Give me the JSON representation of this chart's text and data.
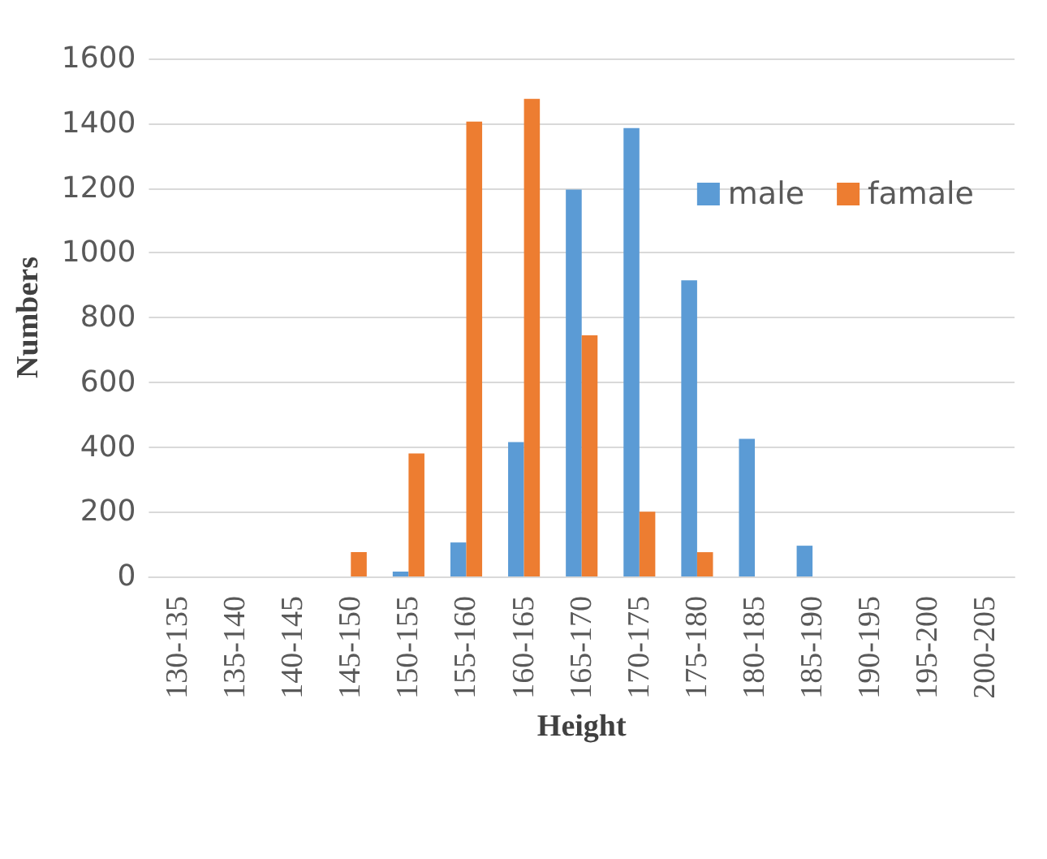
{
  "chart_data": {
    "type": "bar",
    "xlabel": "Height",
    "ylabel": "Numbers",
    "categories": [
      "130-135",
      "135-140",
      "140-145",
      "145-150",
      "150-155",
      "155-160",
      "160-165",
      "165-170",
      "170-175",
      "175-180",
      "180-185",
      "185-190",
      "190-195",
      "195-200",
      "200-205"
    ],
    "series": [
      {
        "name": "male",
        "color": "#5b9bd5",
        "values": [
          0,
          0,
          0,
          0,
          15,
          105,
          415,
          1195,
          1385,
          915,
          425,
          95,
          0,
          0,
          0
        ]
      },
      {
        "name": "famale",
        "color": "#ed7d31",
        "values": [
          0,
          0,
          0,
          75,
          380,
          1405,
          1475,
          745,
          200,
          75,
          0,
          0,
          0,
          0,
          0
        ]
      }
    ],
    "ylim": [
      0,
      1600
    ],
    "yticks": [
      0,
      200,
      400,
      600,
      800,
      1000,
      1200,
      1400,
      1600
    ],
    "grid": "y",
    "legend": "top right"
  }
}
